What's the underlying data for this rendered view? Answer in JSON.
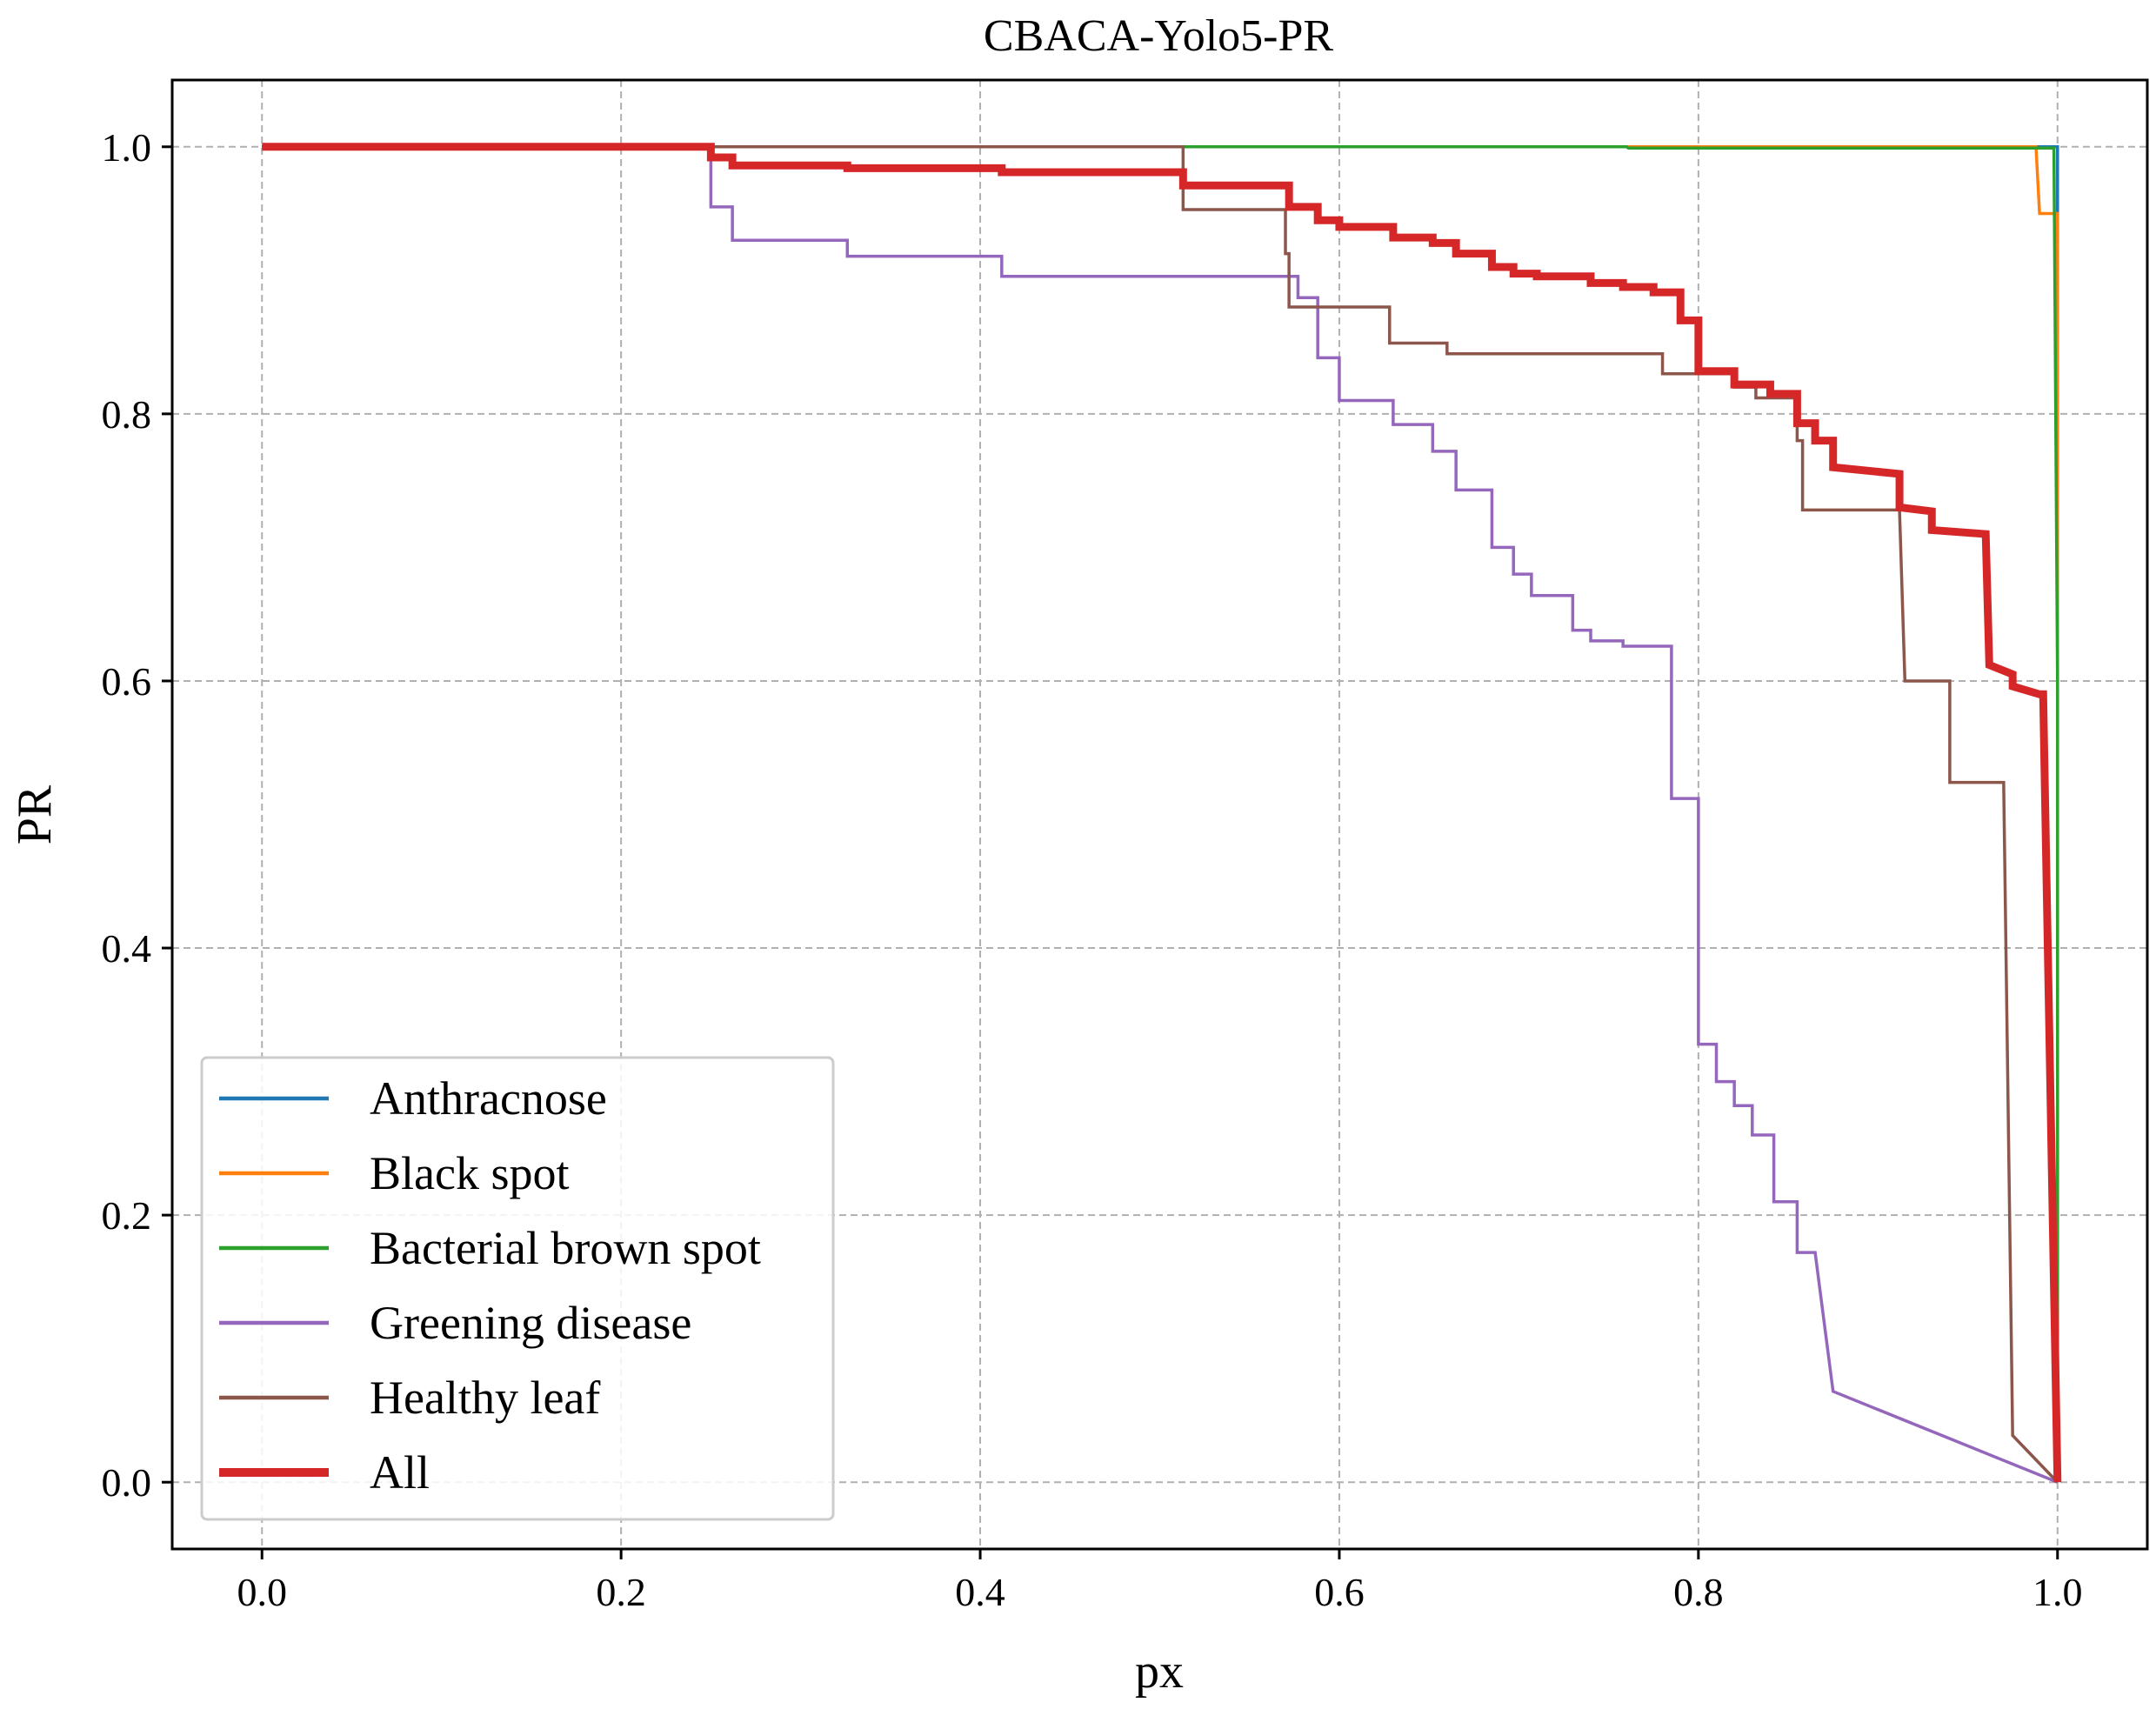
{
  "chart_data": {
    "type": "line",
    "title": "CBACA-Yolo5-PR",
    "xlabel": "px",
    "ylabel": "PR",
    "xlim": [
      -0.05,
      1.05
    ],
    "ylim": [
      -0.05,
      1.05
    ],
    "xticks": [
      0.0,
      0.2,
      0.4,
      0.6,
      0.8,
      1.0
    ],
    "xtick_labels": [
      "0.0",
      "0.2",
      "0.4",
      "0.6",
      "0.8",
      "1.0"
    ],
    "yticks": [
      0.0,
      0.2,
      0.4,
      0.6,
      0.8,
      1.0
    ],
    "ytick_labels": [
      "0.0",
      "0.2",
      "0.4",
      "0.6",
      "0.8",
      "1.0"
    ],
    "grid": true,
    "legend_position": "lower-left",
    "series": [
      {
        "name": "Anthracnose",
        "color": "#1f77b4",
        "width": "normal",
        "points": [
          [
            0,
            1.0
          ],
          [
            1.0,
            1.0
          ],
          [
            1.0,
            0.0
          ]
        ]
      },
      {
        "name": "Black spot",
        "color": "#ff7f0e",
        "width": "normal",
        "points": [
          [
            0,
            1.0
          ],
          [
            0.988,
            1.0
          ],
          [
            0.99,
            0.95
          ],
          [
            1.0,
            0.95
          ],
          [
            1.0,
            0.0
          ]
        ]
      },
      {
        "name": "Bacterial brown spot",
        "color": "#2ca02c",
        "width": "normal",
        "points": [
          [
            0,
            1.0
          ],
          [
            0.76,
            1.0
          ],
          [
            0.761,
            0.999
          ],
          [
            0.998,
            0.999
          ],
          [
            1.0,
            0.6
          ],
          [
            1.0,
            0.0
          ]
        ]
      },
      {
        "name": "Greening disease",
        "color": "#9467bd",
        "width": "normal",
        "points": [
          [
            0,
            1.0
          ],
          [
            0.25,
            1.0
          ],
          [
            0.25,
            0.955
          ],
          [
            0.262,
            0.955
          ],
          [
            0.262,
            0.93
          ],
          [
            0.326,
            0.93
          ],
          [
            0.326,
            0.918
          ],
          [
            0.412,
            0.918
          ],
          [
            0.412,
            0.903
          ],
          [
            0.577,
            0.903
          ],
          [
            0.577,
            0.887
          ],
          [
            0.588,
            0.887
          ],
          [
            0.588,
            0.842
          ],
          [
            0.6,
            0.842
          ],
          [
            0.6,
            0.81
          ],
          [
            0.63,
            0.81
          ],
          [
            0.63,
            0.792
          ],
          [
            0.652,
            0.792
          ],
          [
            0.652,
            0.772
          ],
          [
            0.665,
            0.772
          ],
          [
            0.665,
            0.743
          ],
          [
            0.685,
            0.743
          ],
          [
            0.685,
            0.7
          ],
          [
            0.697,
            0.7
          ],
          [
            0.697,
            0.68
          ],
          [
            0.707,
            0.68
          ],
          [
            0.707,
            0.664
          ],
          [
            0.73,
            0.664
          ],
          [
            0.73,
            0.638
          ],
          [
            0.74,
            0.638
          ],
          [
            0.74,
            0.63
          ],
          [
            0.758,
            0.63
          ],
          [
            0.758,
            0.626
          ],
          [
            0.785,
            0.626
          ],
          [
            0.785,
            0.512
          ],
          [
            0.8,
            0.512
          ],
          [
            0.8,
            0.328
          ],
          [
            0.81,
            0.328
          ],
          [
            0.81,
            0.3
          ],
          [
            0.82,
            0.3
          ],
          [
            0.82,
            0.282
          ],
          [
            0.83,
            0.282
          ],
          [
            0.83,
            0.26
          ],
          [
            0.842,
            0.26
          ],
          [
            0.842,
            0.21
          ],
          [
            0.855,
            0.21
          ],
          [
            0.855,
            0.172
          ],
          [
            0.865,
            0.172
          ],
          [
            0.875,
            0.068
          ],
          [
            1.0,
            0.0
          ]
        ]
      },
      {
        "name": "Healthy leaf",
        "color": "#8c564b",
        "width": "normal",
        "points": [
          [
            0,
            1.0
          ],
          [
            0.513,
            1.0
          ],
          [
            0.513,
            0.953
          ],
          [
            0.57,
            0.953
          ],
          [
            0.57,
            0.92
          ],
          [
            0.572,
            0.92
          ],
          [
            0.572,
            0.88
          ],
          [
            0.628,
            0.88
          ],
          [
            0.628,
            0.853
          ],
          [
            0.66,
            0.853
          ],
          [
            0.66,
            0.845
          ],
          [
            0.78,
            0.845
          ],
          [
            0.78,
            0.83
          ],
          [
            0.82,
            0.83
          ],
          [
            0.82,
            0.82
          ],
          [
            0.832,
            0.82
          ],
          [
            0.832,
            0.812
          ],
          [
            0.855,
            0.812
          ],
          [
            0.855,
            0.78
          ],
          [
            0.858,
            0.78
          ],
          [
            0.858,
            0.728
          ],
          [
            0.912,
            0.728
          ],
          [
            0.915,
            0.6
          ],
          [
            0.94,
            0.6
          ],
          [
            0.94,
            0.524
          ],
          [
            0.97,
            0.524
          ],
          [
            0.975,
            0.035
          ],
          [
            1.0,
            0.0
          ]
        ]
      },
      {
        "name": "All",
        "color": "#d62728",
        "width": "thick",
        "points": [
          [
            0,
            1.0
          ],
          [
            0.25,
            1.0
          ],
          [
            0.25,
            0.992
          ],
          [
            0.262,
            0.992
          ],
          [
            0.262,
            0.986
          ],
          [
            0.326,
            0.986
          ],
          [
            0.326,
            0.984
          ],
          [
            0.412,
            0.984
          ],
          [
            0.412,
            0.981
          ],
          [
            0.513,
            0.981
          ],
          [
            0.513,
            0.971
          ],
          [
            0.572,
            0.971
          ],
          [
            0.572,
            0.955
          ],
          [
            0.588,
            0.955
          ],
          [
            0.588,
            0.945
          ],
          [
            0.6,
            0.945
          ],
          [
            0.6,
            0.94
          ],
          [
            0.63,
            0.94
          ],
          [
            0.63,
            0.932
          ],
          [
            0.652,
            0.932
          ],
          [
            0.652,
            0.928
          ],
          [
            0.665,
            0.928
          ],
          [
            0.665,
            0.92
          ],
          [
            0.685,
            0.92
          ],
          [
            0.685,
            0.91
          ],
          [
            0.697,
            0.91
          ],
          [
            0.697,
            0.905
          ],
          [
            0.71,
            0.905
          ],
          [
            0.71,
            0.903
          ],
          [
            0.74,
            0.903
          ],
          [
            0.74,
            0.898
          ],
          [
            0.758,
            0.898
          ],
          [
            0.758,
            0.895
          ],
          [
            0.775,
            0.895
          ],
          [
            0.775,
            0.891
          ],
          [
            0.79,
            0.891
          ],
          [
            0.79,
            0.87
          ],
          [
            0.8,
            0.87
          ],
          [
            0.8,
            0.832
          ],
          [
            0.82,
            0.832
          ],
          [
            0.82,
            0.822
          ],
          [
            0.84,
            0.822
          ],
          [
            0.84,
            0.815
          ],
          [
            0.855,
            0.815
          ],
          [
            0.855,
            0.793
          ],
          [
            0.865,
            0.793
          ],
          [
            0.865,
            0.78
          ],
          [
            0.875,
            0.78
          ],
          [
            0.875,
            0.76
          ],
          [
            0.912,
            0.755
          ],
          [
            0.912,
            0.73
          ],
          [
            0.93,
            0.727
          ],
          [
            0.93,
            0.713
          ],
          [
            0.96,
            0.71
          ],
          [
            0.962,
            0.612
          ],
          [
            0.975,
            0.605
          ],
          [
            0.975,
            0.596
          ],
          [
            0.99,
            0.59
          ],
          [
            0.992,
            0.59
          ],
          [
            1.0,
            0.0
          ]
        ]
      }
    ]
  }
}
